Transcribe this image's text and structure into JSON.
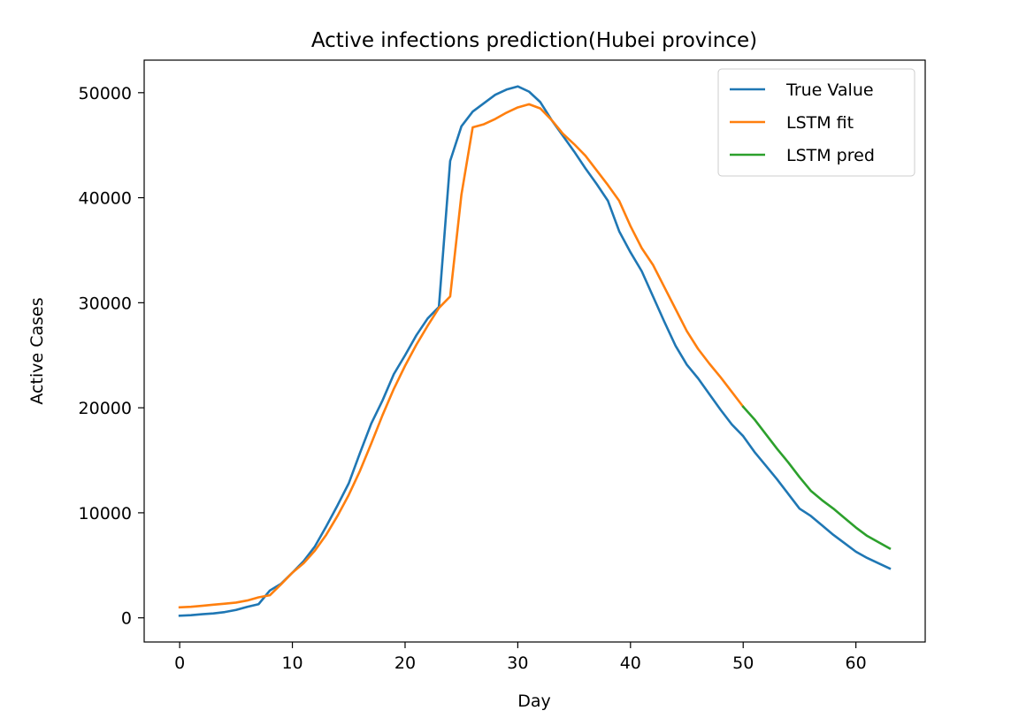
{
  "chart_data": {
    "type": "line",
    "title": "Active infections prediction(Hubei province)",
    "xlabel": "Day",
    "ylabel": "Active Cases",
    "xlim": [
      -3.15,
      66.15
    ],
    "ylim": [
      -2300,
      53100
    ],
    "xticks": [
      0,
      10,
      20,
      30,
      40,
      50,
      60
    ],
    "yticks": [
      0,
      10000,
      20000,
      30000,
      40000,
      50000
    ],
    "legend_position": "upper right",
    "grid": false,
    "series": [
      {
        "name": "True Value",
        "color": "#1f77b4",
        "x": [
          0,
          1,
          2,
          3,
          4,
          5,
          6,
          7,
          8,
          9,
          10,
          11,
          12,
          13,
          14,
          15,
          16,
          17,
          18,
          19,
          20,
          21,
          22,
          23,
          24,
          25,
          26,
          27,
          28,
          29,
          30,
          31,
          32,
          33,
          34,
          35,
          36,
          37,
          38,
          39,
          40,
          41,
          42,
          43,
          44,
          45,
          46,
          47,
          48,
          49,
          50,
          51,
          52,
          53,
          54,
          55,
          56,
          57,
          58,
          59,
          60,
          61,
          62,
          63
        ],
        "y": [
          200,
          250,
          350,
          420,
          550,
          750,
          1050,
          1300,
          2600,
          3250,
          4300,
          5400,
          6800,
          8700,
          10700,
          12800,
          15700,
          18500,
          20700,
          23200,
          25000,
          26900,
          28500,
          29600,
          43500,
          46800,
          48200,
          49000,
          49800,
          50300,
          50600,
          50100,
          49100,
          47400,
          45900,
          44400,
          42800,
          41300,
          39700,
          36800,
          34800,
          33000,
          30600,
          28200,
          25900,
          24100,
          22800,
          21300,
          19800,
          18400,
          17300,
          15800,
          14500,
          13200,
          11800,
          10400,
          9700,
          8800,
          7900,
          7100,
          6300,
          5700,
          5200,
          4700
        ]
      },
      {
        "name": "LSTM fit",
        "color": "#ff7f0e",
        "x": [
          0,
          1,
          2,
          3,
          4,
          5,
          6,
          7,
          8,
          9,
          10,
          11,
          12,
          13,
          14,
          15,
          16,
          17,
          18,
          19,
          20,
          21,
          22,
          23,
          24,
          25,
          26,
          27,
          28,
          29,
          30,
          31,
          32,
          33,
          34,
          35,
          36,
          37,
          38,
          39,
          40,
          41,
          42,
          43,
          44,
          45,
          46,
          47,
          48,
          49,
          50
        ],
        "y": [
          1000,
          1050,
          1150,
          1250,
          1350,
          1450,
          1650,
          1950,
          2150,
          3200,
          4300,
          5200,
          6400,
          7900,
          9700,
          11700,
          14000,
          16600,
          19300,
          21800,
          24000,
          26000,
          27800,
          29500,
          30600,
          40300,
          46700,
          47000,
          47500,
          48100,
          48600,
          48900,
          48500,
          47400,
          46100,
          45100,
          44000,
          42600,
          41200,
          39700,
          37300,
          35200,
          33600,
          31500,
          29400,
          27300,
          25600,
          24200,
          22900,
          21500,
          20100
        ]
      },
      {
        "name": "LSTM pred",
        "color": "#2ca02c",
        "x": [
          50,
          51,
          52,
          53,
          54,
          55,
          56,
          57,
          58,
          59,
          60,
          61,
          62,
          63
        ],
        "y": [
          20100,
          18900,
          17500,
          16100,
          14800,
          13400,
          12100,
          11200,
          10400,
          9500,
          8600,
          7800,
          7200,
          6600
        ]
      }
    ]
  }
}
